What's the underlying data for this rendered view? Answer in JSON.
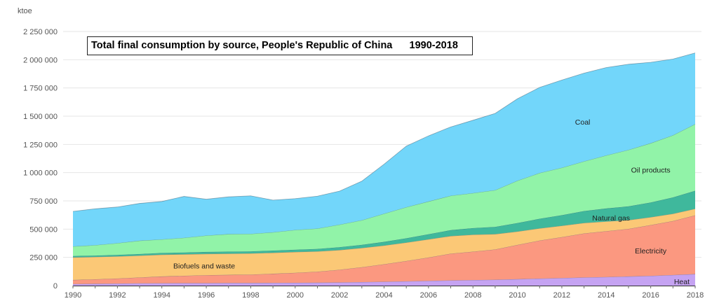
{
  "chart_data": {
    "type": "area",
    "stacked": true,
    "title": "Total final consumption by source, People's Republic of China      1990-2018",
    "ylabel": "ktoe",
    "xlabel": "",
    "ylim": [
      0,
      2250000
    ],
    "yticks": [
      0,
      250000,
      500000,
      750000,
      1000000,
      1250000,
      1500000,
      1750000,
      2000000,
      2250000
    ],
    "ytick_labels": [
      "0",
      "250 000",
      "500 000",
      "750 000",
      "1 000 000",
      "1 250 000",
      "1 500 000",
      "1 750 000",
      "2 000 000",
      "2 250 000"
    ],
    "xticks": [
      1990,
      1992,
      1994,
      1996,
      1998,
      2000,
      2002,
      2004,
      2006,
      2008,
      2010,
      2012,
      2014,
      2016,
      2018
    ],
    "grid": true,
    "x": [
      1990,
      1991,
      1992,
      1993,
      1994,
      1995,
      1996,
      1997,
      1998,
      1999,
      2000,
      2001,
      2002,
      2003,
      2004,
      2005,
      2006,
      2007,
      2008,
      2009,
      2010,
      2011,
      2012,
      2013,
      2014,
      2015,
      2016,
      2017,
      2018
    ],
    "series": [
      {
        "name": "Heat",
        "color": "#c5a3f2",
        "values": [
          14000,
          16000,
          18000,
          20000,
          21000,
          22000,
          22000,
          23000,
          23000,
          24000,
          25000,
          26000,
          28000,
          31000,
          34000,
          38000,
          42000,
          46000,
          49000,
          52000,
          57000,
          62000,
          67000,
          72000,
          76000,
          81000,
          86000,
          94000,
          102000
        ]
      },
      {
        "name": "Electricity",
        "color": "#fb9880",
        "values": [
          36000,
          40000,
          45000,
          52000,
          60000,
          65000,
          70000,
          72000,
          75000,
          81000,
          88000,
          97000,
          112000,
          132000,
          155000,
          180000,
          207000,
          237000,
          252000,
          268000,
          303000,
          337000,
          362000,
          390000,
          406000,
          421000,
          450000,
          478000,
          520000
        ]
      },
      {
        "name": "Biofuels and waste",
        "color": "#fbc876",
        "values": [
          200000,
          198000,
          196000,
          194000,
          193000,
          190000,
          189000,
          188000,
          187000,
          186000,
          185000,
          180000,
          175000,
          170000,
          166000,
          163000,
          161000,
          156000,
          150000,
          136000,
          119000,
          108000,
          101000,
          93000,
          86000,
          78000,
          70000,
          64000,
          58000
        ]
      },
      {
        "name": "Natural gas",
        "color": "#3fb89c",
        "values": [
          12000,
          12000,
          13000,
          14000,
          15000,
          16000,
          17000,
          18000,
          18000,
          19000,
          20000,
          22000,
          25000,
          28000,
          32000,
          38000,
          45000,
          52000,
          58000,
          64000,
          75000,
          85000,
          94000,
          105000,
          115000,
          122000,
          130000,
          145000,
          160000
        ]
      },
      {
        "name": "Oil products",
        "color": "#91f3a8",
        "values": [
          85000,
          92000,
          104000,
          118000,
          120000,
          130000,
          145000,
          155000,
          155000,
          162000,
          175000,
          180000,
          200000,
          218000,
          250000,
          275000,
          290000,
          305000,
          310000,
          325000,
          375000,
          405000,
          420000,
          440000,
          470000,
          500000,
          525000,
          550000,
          590000
        ]
      },
      {
        "name": "Coal",
        "color": "#72d6fa",
        "values": [
          310000,
          322000,
          320000,
          330000,
          336000,
          367000,
          322000,
          330000,
          337000,
          285000,
          277000,
          287000,
          297000,
          346000,
          438000,
          541000,
          581000,
          609000,
          645000,
          680000,
          725000,
          758000,
          776000,
          781000,
          778000,
          758000,
          716000,
          675000,
          630000
        ]
      }
    ]
  }
}
